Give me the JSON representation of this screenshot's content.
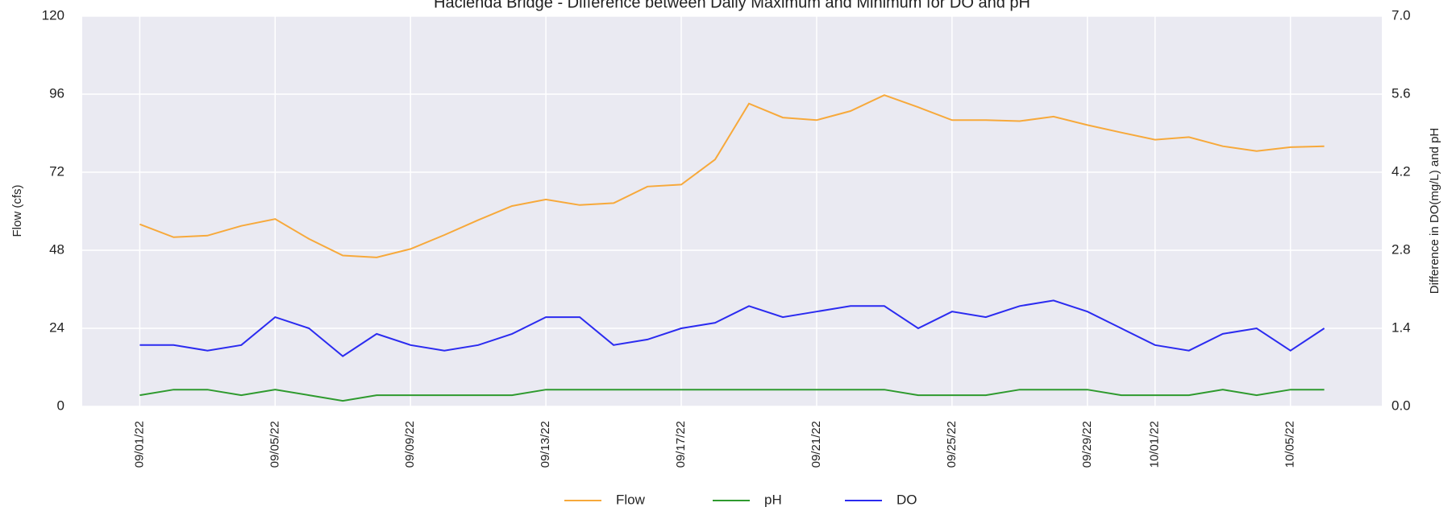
{
  "chart_data": {
    "type": "line",
    "title": "Hacienda Bridge - Difference between Daily Maximum and Minimum for DO and pH",
    "y_label": "Flow (cfs)",
    "y2_label": "Difference in DO(mg/L) and pH",
    "x": [
      "09/01/22",
      "09/02/22",
      "09/03/22",
      "09/04/22",
      "09/05/22",
      "09/06/22",
      "09/07/22",
      "09/08/22",
      "09/09/22",
      "09/10/22",
      "09/11/22",
      "09/12/22",
      "09/13/22",
      "09/14/22",
      "09/15/22",
      "09/16/22",
      "09/17/22",
      "09/18/22",
      "09/19/22",
      "09/20/22",
      "09/21/22",
      "09/22/22",
      "09/23/22",
      "09/24/22",
      "09/25/22",
      "09/26/22",
      "09/27/22",
      "09/28/22",
      "09/29/22",
      "09/30/22",
      "10/01/22",
      "10/02/22",
      "10/03/22",
      "10/04/22",
      "10/05/22",
      "10/06/22"
    ],
    "xticks": [
      "09/01/22",
      "09/05/22",
      "09/09/22",
      "09/13/22",
      "09/17/22",
      "09/21/22",
      "09/25/22",
      "09/29/22",
      "10/01/22",
      "10/05/22"
    ],
    "ylim": [
      0,
      120
    ],
    "yticks": [
      0,
      24,
      48,
      72,
      96,
      120
    ],
    "y2lim": [
      0,
      7
    ],
    "y2ticks": [
      {
        "value": 0,
        "label": "0.0"
      },
      1.4,
      2.8,
      4.2,
      5.6,
      {
        "value": 7,
        "label": "7.0"
      }
    ],
    "grid": true,
    "legend": "bottom",
    "series": [
      {
        "name": "Flow",
        "color": "#f7a93b",
        "values": [
          56,
          52,
          52.5,
          55.5,
          57.6,
          51.5,
          46.4,
          45.8,
          48.4,
          52.7,
          57.3,
          61.6,
          63.6,
          61.9,
          62.5,
          67.6,
          68.2,
          75.9,
          93.1,
          88.8,
          88,
          90.8,
          95.7,
          92,
          88,
          88,
          87.7,
          89.1,
          86.5,
          84.2,
          82,
          82.8,
          80,
          78.5,
          79.7,
          80
        ]
      },
      {
        "name": "pH",
        "color": "#2e9a2e",
        "axis": "y2",
        "values": [
          0.2,
          0.3,
          0.3,
          0.2,
          0.3,
          0.2,
          0.1,
          0.2,
          0.2,
          0.2,
          0.2,
          0.2,
          0.3,
          0.3,
          0.3,
          0.3,
          0.3,
          0.3,
          0.3,
          0.3,
          0.3,
          0.3,
          0.3,
          0.2,
          0.2,
          0.2,
          0.3,
          0.3,
          0.3,
          0.2,
          0.2,
          0.2,
          0.3,
          0.2,
          0.3,
          0.3
        ]
      },
      {
        "name": "DO",
        "color": "#2b2bf0",
        "axis": "y2",
        "values": [
          1.1,
          1.1,
          1.0,
          1.1,
          1.6,
          1.4,
          0.9,
          1.3,
          1.1,
          1.0,
          1.1,
          1.3,
          1.6,
          1.6,
          1.1,
          1.2,
          1.4,
          1.5,
          1.8,
          1.6,
          1.7,
          1.8,
          1.8,
          1.4,
          1.7,
          1.6,
          1.8,
          1.9,
          1.7,
          1.4,
          1.1,
          1.0,
          1.3,
          1.4,
          1.0,
          1.4
        ]
      }
    ]
  }
}
